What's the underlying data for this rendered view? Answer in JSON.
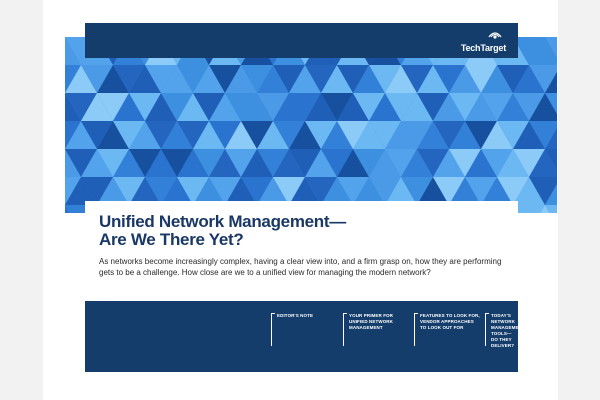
{
  "brand": {
    "name": "TechTarget",
    "colors": {
      "navy": "#143d6b",
      "title_blue": "#1a3866",
      "hero_blue": "#3d8fe0"
    }
  },
  "title": {
    "line1": "Unified Network Management—",
    "line2": "Are We There Yet?"
  },
  "description": "As networks become increasingly complex, having a clear view into, and a firm grasp on, how they are performing gets to be a challenge. How close are we to a unified view for managing the modern network?",
  "nav": {
    "items": [
      {
        "label": "EDITOR'S NOTE"
      },
      {
        "label": "YOUR PRIMER FOR\nUNIFIED NETWORK\nMANAGEMENT"
      },
      {
        "label": "FEATURES TO LOOK FOR,\nVENDOR APPROACHES\nTO LOOK OUT FOR"
      },
      {
        "label": "TODAY'S NETWORK\nMANAGEMENT TOOLS—\nDO THEY DELIVER?"
      }
    ]
  },
  "icons": {
    "logo": "techtarget-eye-icon"
  }
}
